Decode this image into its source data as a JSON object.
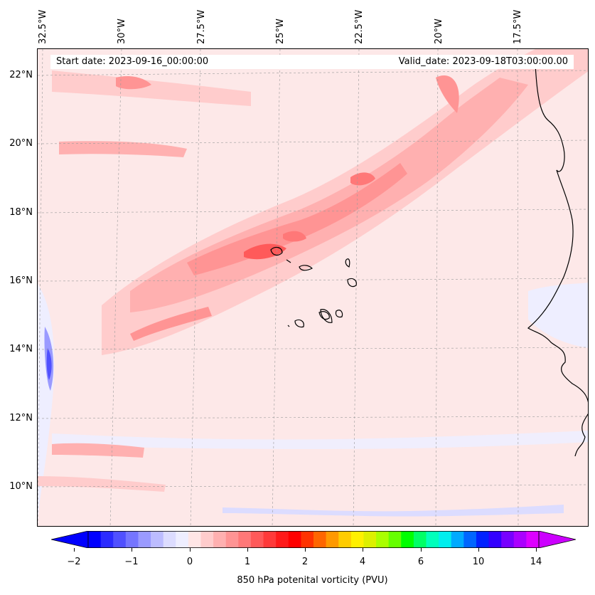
{
  "header": {
    "start_date": "Start date: 2023-09-16_00:00:00",
    "valid_date": "Valid_date: 2023-09-18T03:00:00.00"
  },
  "longitude_labels": [
    "32.5°W",
    "30°W",
    "27.5°W",
    "25°W",
    "22.5°W",
    "20°W",
    "17.5°W"
  ],
  "latitude_labels": [
    "22°N",
    "20°N",
    "18°N",
    "16°N",
    "14°N",
    "12°N",
    "10°N"
  ],
  "colorbar": {
    "label": "850 hPa potenital vorticity (PVU)",
    "ticks": [
      "−2",
      "−1",
      "0",
      "1",
      "2",
      "4",
      "6",
      "10",
      "14"
    ],
    "colors": [
      "#0000ff",
      "#2b2bff",
      "#5050ff",
      "#7575ff",
      "#9a9aff",
      "#bcbcff",
      "#dcdcff",
      "#eeeeff",
      "#ffe6e6",
      "#ffcccc",
      "#ffb0b0",
      "#ff9494",
      "#ff7878",
      "#ff5a5a",
      "#ff3a3a",
      "#ff1a1a",
      "#ff0000",
      "#ff3300",
      "#ff6600",
      "#ff9900",
      "#ffcc00",
      "#fff000",
      "#ddf000",
      "#aaff00",
      "#66ff00",
      "#00ff00",
      "#00ff66",
      "#00ffbb",
      "#00eeee",
      "#00aaff",
      "#0066ff",
      "#0022ff",
      "#3300ff",
      "#7700ff",
      "#aa00ff",
      "#dd00ff"
    ],
    "extend_min_color": "#0000ff",
    "extend_max_color": "#cc00ff"
  }
}
